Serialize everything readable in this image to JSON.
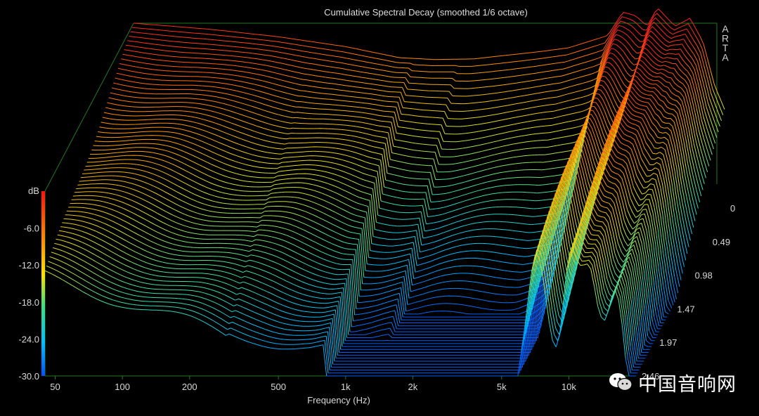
{
  "chart_data": {
    "type": "waterfall",
    "title": "Cumulative Spectral Decay (smoothed 1/6 octave)",
    "xlabel": "Frequency (Hz)",
    "ylabel": "dB",
    "zlabel_ticks": [
      "0",
      "0.49",
      "0.98",
      "1.47",
      "1.97",
      "2.46"
    ],
    "z_range_ms": [
      0,
      2.46
    ],
    "x_ticks": [
      "50",
      "100",
      "200",
      "500",
      "1k",
      "2k",
      "5k",
      "10k"
    ],
    "x_tick_values": [
      50,
      100,
      200,
      500,
      1000,
      2000,
      5000,
      10000
    ],
    "x_range": [
      45,
      20000
    ],
    "y_ticks": [
      "-6.0",
      "-12.0",
      "-18.0",
      "-24.0",
      "-30.0"
    ],
    "y_tick_values": [
      -6,
      -12,
      -18,
      -24,
      -30
    ],
    "y_range": [
      -30,
      0
    ],
    "slice_count": 58,
    "first_slice_profile": {
      "freq_hz": [
        45,
        100,
        200,
        400,
        700,
        1000,
        1500,
        2000,
        3000,
        4000,
        6000,
        7000,
        8000,
        9000,
        10000,
        12000,
        14000,
        16000,
        18000,
        20000
      ],
      "db": [
        0,
        -1.0,
        -2.2,
        -3.8,
        -5.6,
        -5.9,
        -5.8,
        -5.3,
        -4.6,
        -4.0,
        -2.0,
        1.8,
        1.2,
        -0.5,
        2.5,
        -0.5,
        0.8,
        -3.0,
        -10.0,
        -14.0
      ]
    },
    "decay_behavior": "low frequencies decay slowly; mid band 1k-6k decays to floor; resonances near 7k, 10k, 12k and 16k ring longest",
    "colormap": [
      "#0060ff",
      "#00c0ff",
      "#40e0a0",
      "#e0e020",
      "#ff9000",
      "#ff2020"
    ],
    "watermark": "ARTA"
  },
  "logo_text": "中国音响网",
  "colors": {
    "background": "#000000",
    "frame": "#1f7a1f",
    "text": "#d8d8d8"
  }
}
